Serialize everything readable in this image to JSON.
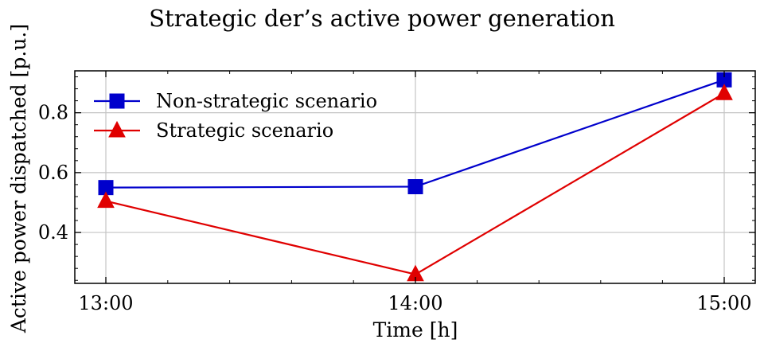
{
  "chart_data": {
    "type": "line",
    "title": "Strategic der’s active power generation",
    "xlabel": "Time [h]",
    "ylabel": "Active power dispatched [p.u.]",
    "categories": [
      "13:00",
      "14:00",
      "15:00"
    ],
    "ylim": [
      0.23,
      0.94
    ],
    "yticks": [
      0.4,
      0.6,
      0.8
    ],
    "ytick_labels": [
      "0.4",
      "0.6",
      "0.8"
    ],
    "grid": true,
    "legend_position": "top-left",
    "series": [
      {
        "name": "Non-strategic scenario",
        "values": [
          0.55,
          0.553,
          0.91
        ],
        "color": "#0000cc",
        "marker": "square"
      },
      {
        "name": "Strategic scenario",
        "values": [
          0.505,
          0.26,
          0.865
        ],
        "color": "#e00000",
        "marker": "triangle"
      }
    ]
  }
}
